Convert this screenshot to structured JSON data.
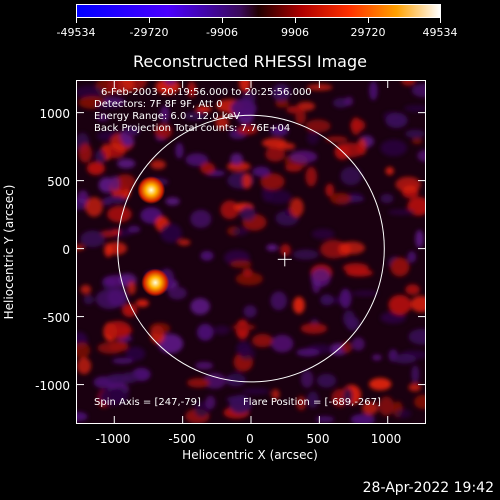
{
  "colorbar": {
    "labels": [
      "-49534",
      "-29720",
      "-9906",
      "9906",
      "29720",
      "49534"
    ]
  },
  "chart_data": {
    "type": "heatmap",
    "title": "Reconstructed RHESSI Image",
    "xlabel": "Heliocentric X (arcsec)",
    "ylabel": "Heliocentric Y (arcsec)",
    "xlim": [
      -1280,
      1280
    ],
    "ylim": [
      -1290,
      1240
    ],
    "x_ticks": [
      "-1000",
      "-500",
      "0",
      "500",
      "1000"
    ],
    "y_ticks": [
      "1000",
      "500",
      "0",
      "-500",
      "-1000"
    ],
    "solar_limb_radius": 975,
    "flare_position": [
      -689,
      -267
    ],
    "center_cross": [
      247,
      -79
    ],
    "sources": [
      {
        "x": -730,
        "y": 430,
        "intensity": "high"
      },
      {
        "x": -700,
        "y": -250,
        "intensity": "high"
      }
    ]
  },
  "info": {
    "line1": "6-Feb-2003 20:19:56.000 to 20:25:56.000",
    "line2": "Detectors: 7F 8F 9F, Att 0",
    "line3": "Energy Range: 6.0 - 12.0 keV",
    "line4": "Back Projection    Total counts: 7.76E+04"
  },
  "footer": {
    "spin_axis": "Spin Axis = [247,-79]",
    "flare_position": "Flare Position = [-689,-267]"
  },
  "timestamp": "28-Apr-2022 19:42"
}
